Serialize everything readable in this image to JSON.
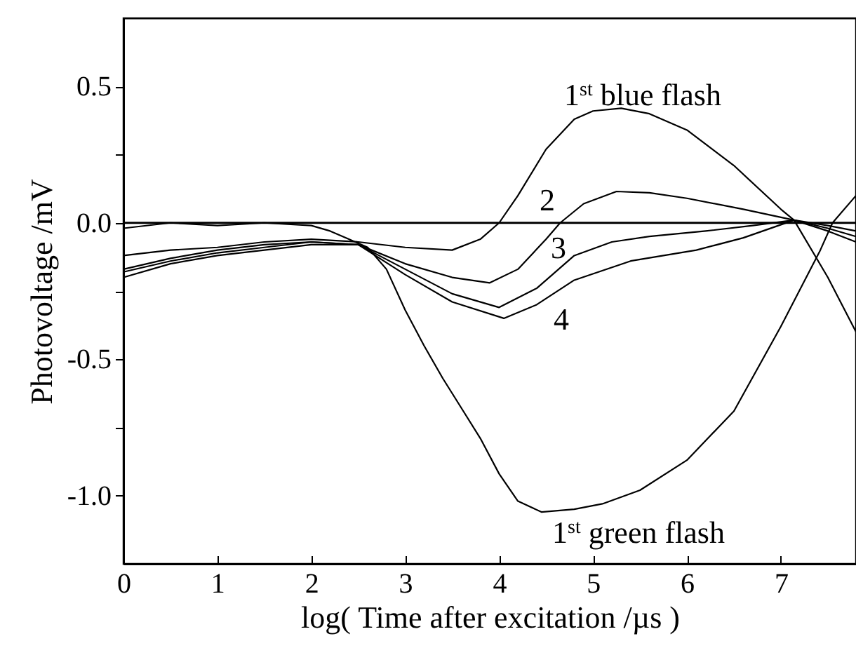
{
  "chart_data": {
    "type": "line",
    "xlabel": "log( Time after excitation /µs )",
    "ylabel": "Photovoltage /mV",
    "xlim": [
      0,
      7.8
    ],
    "ylim": [
      -1.25,
      0.75
    ],
    "xticks": [
      0,
      1,
      2,
      3,
      4,
      5,
      6,
      7
    ],
    "yticks": [
      {
        "value": -1,
        "label": "-1.0"
      },
      {
        "value": -0.75,
        "label": null
      },
      {
        "value": -0.5,
        "label": "-0.5"
      },
      {
        "value": -0.25,
        "label": null
      },
      {
        "value": 0,
        "label": "0.0"
      },
      {
        "value": 0.25,
        "label": null
      },
      {
        "value": 0.5,
        "label": "0.5"
      }
    ],
    "grid": false,
    "marker": "none",
    "line_style": "solid",
    "ref_lines": [
      {
        "axis": "y",
        "value": 0
      }
    ],
    "series": [
      {
        "name": "1$^{st}$ green flash",
        "color": "#000000",
        "x": [
          0,
          0.5,
          1,
          1.5,
          2,
          2.2,
          2.4,
          2.6,
          2.8,
          3.0,
          3.2,
          3.4,
          3.6,
          3.8,
          4.0,
          4.2,
          4.45,
          4.8,
          5.1,
          5.5,
          6.0,
          6.5,
          7.0,
          7.42,
          7.55,
          7.8
        ],
        "values": [
          -0.02,
          0,
          -0.01,
          0,
          -0.01,
          -0.03,
          -0.06,
          -0.09,
          -0.17,
          -0.32,
          -0.45,
          -0.57,
          -0.68,
          -0.79,
          -0.92,
          -1.02,
          -1.06,
          -1.05,
          -1.03,
          -0.98,
          -0.87,
          -0.69,
          -0.38,
          -0.1,
          0,
          0.1
        ]
      },
      {
        "name": "1$^{st}$ blue flash",
        "color": "#000000",
        "x": [
          0,
          0.5,
          1,
          1.5,
          2,
          2.5,
          3,
          3.5,
          3.8,
          4.0,
          4.2,
          4.5,
          4.8,
          5.0,
          5.3,
          5.6,
          6.0,
          6.5,
          7.0,
          7.14,
          7.5,
          7.8
        ],
        "values": [
          -0.12,
          -0.1,
          -0.09,
          -0.07,
          -0.06,
          -0.07,
          -0.09,
          -0.1,
          -0.06,
          0,
          0.1,
          0.27,
          0.38,
          0.41,
          0.42,
          0.4,
          0.34,
          0.21,
          0.05,
          0.01,
          -0.2,
          -0.4
        ]
      },
      {
        "name": "2",
        "color": "#000000",
        "x": [
          0,
          0.5,
          1,
          1.5,
          2,
          2.5,
          3,
          3.5,
          3.9,
          4.2,
          4.5,
          4.65,
          4.9,
          5.25,
          5.6,
          6.0,
          6.6,
          7.14,
          7.5,
          7.8
        ],
        "values": [
          -0.17,
          -0.13,
          -0.1,
          -0.08,
          -0.07,
          -0.08,
          -0.15,
          -0.2,
          -0.22,
          -0.17,
          -0.06,
          0,
          0.07,
          0.115,
          0.11,
          0.09,
          0.05,
          0.01,
          -0.01,
          -0.03
        ]
      },
      {
        "name": "3",
        "color": "#000000",
        "x": [
          0,
          0.5,
          1,
          1.5,
          2,
          2.5,
          3,
          3.5,
          4.0,
          4.4,
          4.8,
          5.2,
          5.6,
          6.2,
          6.7,
          7.14,
          7.5,
          7.8
        ],
        "values": [
          -0.18,
          -0.14,
          -0.11,
          -0.09,
          -0.07,
          -0.08,
          -0.17,
          -0.26,
          -0.31,
          -0.24,
          -0.12,
          -0.07,
          -0.05,
          -0.03,
          -0.01,
          0.01,
          -0.02,
          -0.05
        ]
      },
      {
        "name": "4",
        "color": "#000000",
        "x": [
          0,
          0.5,
          1,
          1.5,
          2,
          2.5,
          3,
          3.5,
          4.05,
          4.4,
          4.8,
          5.4,
          6.1,
          6.6,
          7.14,
          7.5,
          7.8
        ],
        "values": [
          -0.2,
          -0.15,
          -0.12,
          -0.1,
          -0.08,
          -0.08,
          -0.19,
          -0.29,
          -0.35,
          -0.3,
          -0.21,
          -0.14,
          -0.1,
          -0.055,
          0.01,
          -0.03,
          -0.07
        ]
      }
    ]
  }
}
